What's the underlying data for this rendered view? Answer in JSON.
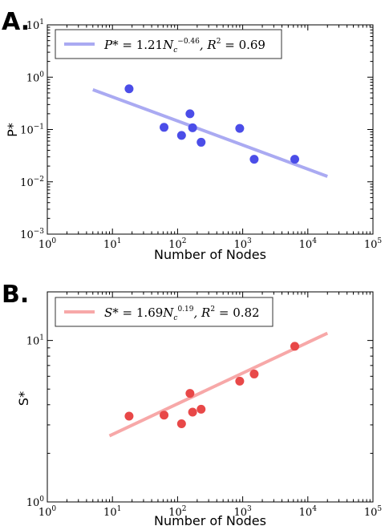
{
  "chart_data": [
    {
      "panel_label": "A.",
      "type": "scatter",
      "xlabel": "Number of Nodes",
      "ylabel": "P*",
      "xscale": "log",
      "yscale": "log",
      "xlim": [
        1,
        100000
      ],
      "ylim": [
        0.001,
        10
      ],
      "x_tick_exponents": [
        "0",
        "1",
        "2",
        "3",
        "4",
        "5"
      ],
      "y_tick_exponents": [
        "-3",
        "-2",
        "-1",
        "0",
        "1"
      ],
      "legend": {
        "placement": "top-left",
        "label": "P* = 1.21N_c^-0.46, R^2 = 0.69",
        "coef": "1.21",
        "exponent": "−0.46",
        "r2": "0.69"
      },
      "fit": {
        "a": 1.21,
        "b": -0.46,
        "x_range": [
          5,
          20000
        ]
      },
      "point_color": "#4b4de8",
      "fit_color": "#aaaaf2",
      "points": [
        {
          "x": 18,
          "y": 0.6
        },
        {
          "x": 62,
          "y": 0.11
        },
        {
          "x": 115,
          "y": 0.077
        },
        {
          "x": 155,
          "y": 0.2
        },
        {
          "x": 170,
          "y": 0.108
        },
        {
          "x": 230,
          "y": 0.057
        },
        {
          "x": 900,
          "y": 0.105
        },
        {
          "x": 1500,
          "y": 0.027
        },
        {
          "x": 6300,
          "y": 0.027
        }
      ]
    },
    {
      "panel_label": "B.",
      "type": "scatter",
      "xlabel": "Number of Nodes",
      "ylabel": "S*",
      "xscale": "log",
      "yscale": "log",
      "xlim": [
        1,
        100000
      ],
      "ylim": [
        1,
        20
      ],
      "x_tick_exponents": [
        "0",
        "1",
        "2",
        "3",
        "4",
        "5"
      ],
      "y_tick_exponents": [
        "0",
        "1"
      ],
      "legend": {
        "placement": "top-left",
        "label": "S* = 1.69N_c^0.19, R^2 = 0.82",
        "coef": "1.69",
        "exponent": "0.19",
        "r2": "0.82"
      },
      "fit": {
        "a": 1.69,
        "b": 0.19,
        "x_range": [
          9,
          20000
        ]
      },
      "point_color": "#e84848",
      "fit_color": "#f7a8a8",
      "points": [
        {
          "x": 18,
          "y": 3.4
        },
        {
          "x": 62,
          "y": 3.45
        },
        {
          "x": 115,
          "y": 3.05
        },
        {
          "x": 155,
          "y": 4.7
        },
        {
          "x": 170,
          "y": 3.6
        },
        {
          "x": 230,
          "y": 3.75
        },
        {
          "x": 900,
          "y": 5.6
        },
        {
          "x": 1500,
          "y": 6.2
        },
        {
          "x": 6300,
          "y": 9.2
        }
      ]
    }
  ]
}
